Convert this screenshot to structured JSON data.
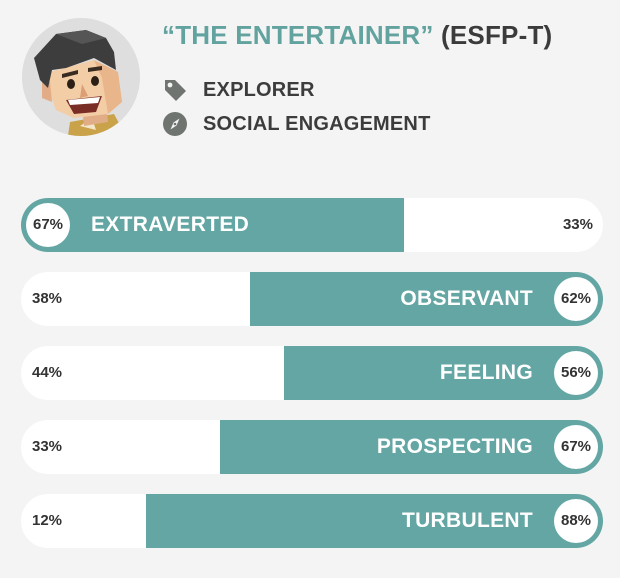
{
  "profile": {
    "type_name": "“THE ENTERTAINER”",
    "type_code": " (ESFP-T)",
    "tags": [
      {
        "icon": "tag-icon",
        "label": "EXPLORER"
      },
      {
        "icon": "compass-icon",
        "label": "SOCIAL ENGAGEMENT"
      }
    ]
  },
  "colors": {
    "accent": "#63a6a3",
    "title_teal": "#62a39f",
    "text_dark": "#3c3c3c",
    "background": "#f4f4f4"
  },
  "traits": [
    {
      "left_pct": "67%",
      "right_pct": "33%",
      "label": "EXTRAVERTED",
      "dominant_side": "left",
      "dominant_value": 67
    },
    {
      "left_pct": "38%",
      "right_pct": "62%",
      "label": "OBSERVANT",
      "dominant_side": "right",
      "dominant_value": 62
    },
    {
      "left_pct": "44%",
      "right_pct": "56%",
      "label": "FEELING",
      "dominant_side": "right",
      "dominant_value": 56
    },
    {
      "left_pct": "33%",
      "right_pct": "67%",
      "label": "PROSPECTING",
      "dominant_side": "right",
      "dominant_value": 67
    },
    {
      "left_pct": "12%",
      "right_pct": "88%",
      "label": "TURBULENT",
      "dominant_side": "right",
      "dominant_value": 88
    }
  ]
}
